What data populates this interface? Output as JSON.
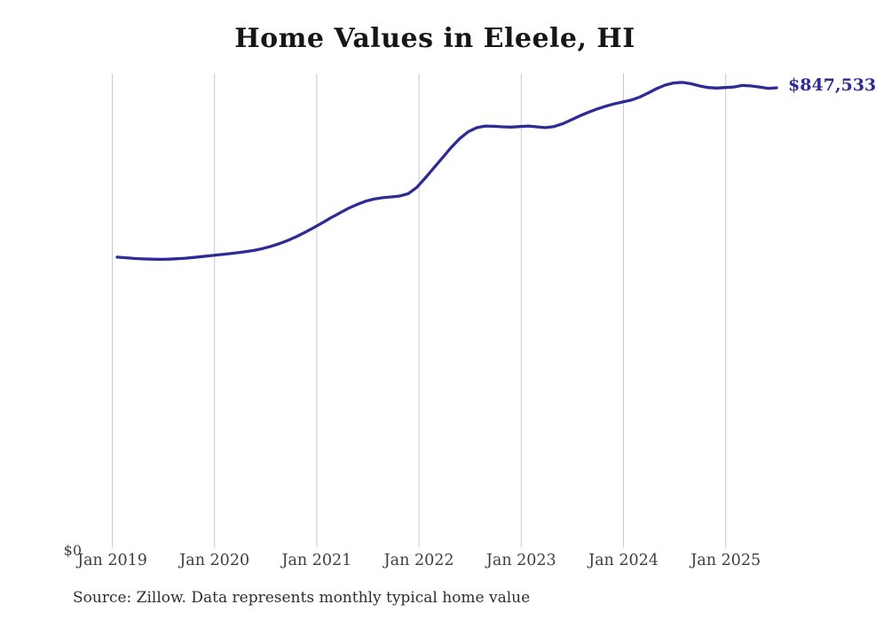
{
  "title": "Home Values in Eleele, HI",
  "source_note": "Source: Zillow. Data represents monthly typical home value",
  "colors": {
    "line": "#2e2b96",
    "grid": "#c9c9c9",
    "title_text": "#161616",
    "axis_text": "#3f3f3f"
  },
  "chart_data": {
    "type": "line",
    "title": "Home Values in Eleele, HI",
    "xlabel": "",
    "ylabel": "",
    "grid": "vertical-only",
    "legend": "none",
    "end_label": "$847,533",
    "latest_value": 847533,
    "y_axis": {
      "zero_label": "$0",
      "min": 0,
      "max_implied": 873000
    },
    "x_tick_labels": [
      "Jan 2019",
      "Jan 2020",
      "Jan 2021",
      "Jan 2022",
      "Jan 2023",
      "Jan 2024",
      "Jan 2025"
    ],
    "x": [
      "2019-01",
      "2019-02",
      "2019-03",
      "2019-04",
      "2019-05",
      "2019-06",
      "2019-07",
      "2019-08",
      "2019-09",
      "2019-10",
      "2019-11",
      "2019-12",
      "2020-01",
      "2020-02",
      "2020-03",
      "2020-04",
      "2020-05",
      "2020-06",
      "2020-07",
      "2020-08",
      "2020-09",
      "2020-10",
      "2020-11",
      "2020-12",
      "2021-01",
      "2021-02",
      "2021-03",
      "2021-04",
      "2021-05",
      "2021-06",
      "2021-07",
      "2021-08",
      "2021-09",
      "2021-10",
      "2021-11",
      "2021-12",
      "2022-01",
      "2022-02",
      "2022-03",
      "2022-04",
      "2022-05",
      "2022-06",
      "2022-07",
      "2022-08",
      "2022-09",
      "2022-10",
      "2022-11",
      "2022-12",
      "2023-01",
      "2023-02",
      "2023-03",
      "2023-04",
      "2023-05",
      "2023-06",
      "2023-07",
      "2023-08",
      "2023-09",
      "2023-10",
      "2023-11",
      "2023-12",
      "2024-01",
      "2024-02",
      "2024-03",
      "2024-04",
      "2024-05",
      "2024-06",
      "2024-07",
      "2024-08",
      "2024-09",
      "2024-10",
      "2024-11",
      "2024-12",
      "2025-01",
      "2025-02",
      "2025-03",
      "2025-04",
      "2025-05",
      "2025-06"
    ],
    "values": [
      537000,
      535800,
      534600,
      533800,
      533200,
      533000,
      533300,
      534000,
      535100,
      536500,
      538100,
      539900,
      541500,
      543200,
      545000,
      547000,
      549500,
      552800,
      557000,
      562000,
      568000,
      575000,
      583000,
      591500,
      600500,
      609500,
      618000,
      626500,
      633500,
      639500,
      643500,
      646000,
      647500,
      649000,
      653500,
      665000,
      682500,
      701000,
      719500,
      738000,
      754500,
      767000,
      774500,
      777500,
      777000,
      776000,
      775500,
      776500,
      777500,
      776000,
      774500,
      776500,
      781500,
      788500,
      796000,
      802500,
      808500,
      813500,
      818000,
      821500,
      825000,
      830500,
      838000,
      846000,
      852500,
      856500,
      857500,
      855000,
      851000,
      848000,
      847000,
      848000,
      849000,
      852000,
      851000,
      849000,
      846500,
      847533
    ]
  }
}
